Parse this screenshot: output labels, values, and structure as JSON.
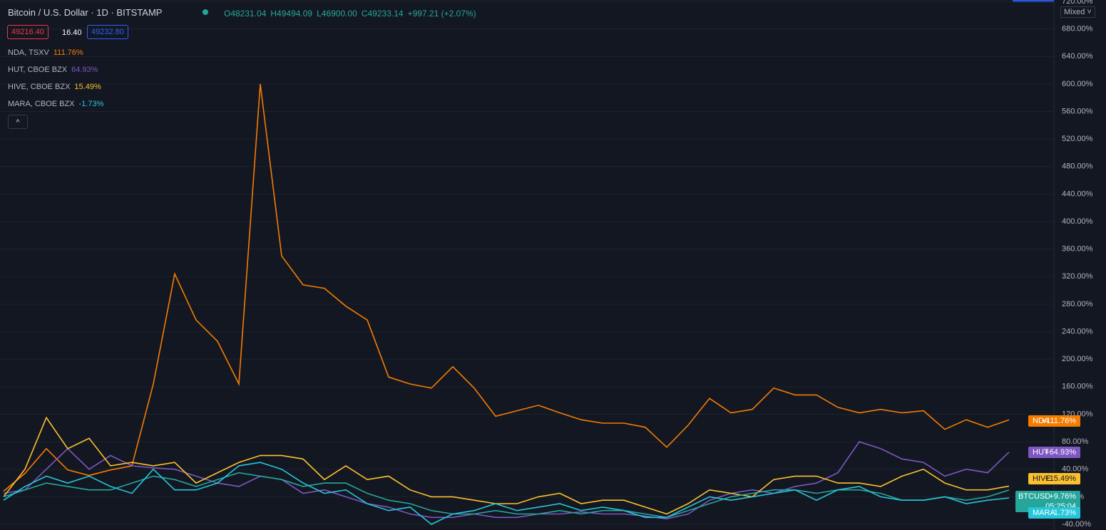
{
  "chart_data": {
    "type": "line",
    "title": "Bitcoin / U.S. Dollar · 1D · BITSTAMP",
    "ohlc": [
      "O48231.04",
      "H49494.09",
      "L46900.00",
      "C49233.14",
      "+997.21 (+2.07%)"
    ],
    "prices": [
      "49216.40",
      "16.40",
      "49232.80"
    ],
    "scale_mode": "Mixed",
    "ylim": [
      -40,
      720
    ],
    "yticks": [
      {
        "value": 720,
        "label": "720.00%"
      },
      {
        "value": 680,
        "label": "680.00%"
      },
      {
        "value": 640,
        "label": "640.00%"
      },
      {
        "value": 600,
        "label": "600.00%"
      },
      {
        "value": 560,
        "label": "560.00%"
      },
      {
        "value": 520,
        "label": "520.00%"
      },
      {
        "value": 480,
        "label": "480.00%"
      },
      {
        "value": 440,
        "label": "440.00%"
      },
      {
        "value": 400,
        "label": "400.00%"
      },
      {
        "value": 360,
        "label": "360.00%"
      },
      {
        "value": 320,
        "label": "320.00%"
      },
      {
        "value": 280,
        "label": "280.00%"
      },
      {
        "value": 240,
        "label": "240.00%"
      },
      {
        "value": 200,
        "label": "200.00%"
      },
      {
        "value": 160,
        "label": "160.00%"
      },
      {
        "value": 120,
        "label": "120.00%"
      },
      {
        "value": 80,
        "label": "80.00%"
      },
      {
        "value": 40,
        "label": "40.00%"
      },
      {
        "value": 0,
        "label": "0.00%"
      },
      {
        "value": -40,
        "label": "-40.00%"
      }
    ],
    "grid": true,
    "series": [
      {
        "name": "NDA",
        "legend": "NDA, TSXV",
        "legend_value": "111.76%",
        "badge": "+111.76%",
        "color": "#f57c00",
        "values": [
          8,
          34,
          70,
          39,
          31,
          39,
          45,
          164,
          324,
          257,
          226,
          164,
          600,
          350,
          308,
          303,
          277,
          257,
          174,
          164,
          158,
          189,
          158,
          117,
          125,
          133,
          122,
          112,
          107,
          107,
          101,
          72,
          104,
          143,
          122,
          127,
          158,
          148,
          148,
          130,
          122,
          127,
          122,
          125,
          98,
          112,
          101,
          111.76
        ]
      },
      {
        "name": "HUT",
        "legend": "HUT, CBOE BZX",
        "legend_value": "64.93%",
        "badge": "+64.93%",
        "color": "#7e57c2",
        "values": [
          5,
          10,
          40,
          70,
          40,
          60,
          45,
          42,
          40,
          30,
          20,
          15,
          30,
          25,
          5,
          10,
          0,
          -10,
          -15,
          -25,
          -30,
          -30,
          -25,
          -30,
          -30,
          -25,
          -25,
          -22,
          -25,
          -25,
          -28,
          -32,
          -25,
          -5,
          5,
          10,
          5,
          15,
          20,
          35,
          80,
          70,
          55,
          50,
          30,
          40,
          35,
          64.93
        ]
      },
      {
        "name": "HIVE",
        "legend": "HIVE, CBOE BZX",
        "legend_value": "15.49%",
        "badge": "+15.49%",
        "color": "#fbc02d",
        "values": [
          0,
          40,
          115,
          70,
          85,
          45,
          50,
          45,
          50,
          20,
          35,
          50,
          60,
          60,
          55,
          25,
          45,
          25,
          30,
          10,
          0,
          0,
          -5,
          -10,
          -10,
          0,
          5,
          -10,
          -5,
          -5,
          -15,
          -25,
          -10,
          10,
          5,
          0,
          25,
          30,
          30,
          20,
          20,
          15,
          30,
          40,
          20,
          10,
          10,
          15.49
        ]
      },
      {
        "name": "BTCUSD",
        "badge": "+9.76%",
        "countdown": "05:25:04",
        "color": "#26a69a",
        "values": [
          0,
          10,
          20,
          15,
          10,
          10,
          20,
          30,
          25,
          15,
          25,
          35,
          30,
          25,
          15,
          20,
          20,
          5,
          -5,
          -10,
          -20,
          -25,
          -25,
          -20,
          -25,
          -25,
          -20,
          -25,
          -20,
          -20,
          -25,
          -30,
          -20,
          -10,
          0,
          5,
          10,
          10,
          5,
          10,
          10,
          5,
          -5,
          -5,
          0,
          -5,
          0,
          9.76
        ]
      },
      {
        "name": "MARA",
        "legend": "MARA, CBOE BZX",
        "legend_value": "-1.73%",
        "badge": "-1.73%",
        "color": "#26c6da",
        "values": [
          -5,
          15,
          30,
          20,
          30,
          15,
          5,
          40,
          10,
          10,
          20,
          45,
          50,
          40,
          20,
          5,
          10,
          -10,
          -20,
          -15,
          -40,
          -25,
          -20,
          -10,
          -20,
          -15,
          -10,
          -20,
          -15,
          -20,
          -30,
          -30,
          -15,
          0,
          -5,
          0,
          5,
          10,
          -5,
          10,
          15,
          0,
          -5,
          -5,
          0,
          -10,
          -5,
          -1.73
        ]
      }
    ]
  }
}
